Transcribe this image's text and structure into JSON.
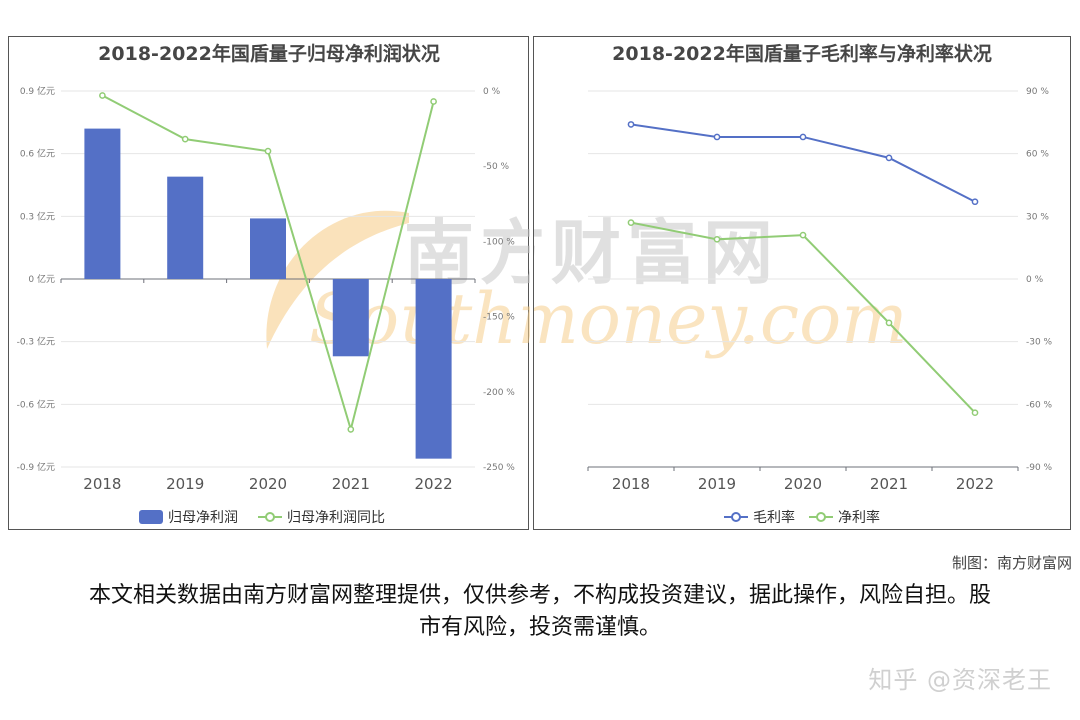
{
  "colors": {
    "bar": "#5470c6",
    "line_green": "#91cc75",
    "line_blue": "#5470c6",
    "grid": "#e6e6e6",
    "axis": "#6e7079"
  },
  "chart_data": [
    {
      "type": "bar",
      "title": "2018-2022年国盾量子归母净利润状况",
      "categories": [
        "2018",
        "2019",
        "2020",
        "2021",
        "2022"
      ],
      "y_left": {
        "ticks": [
          "0.9 亿元",
          "0.6 亿元",
          "0.3 亿元",
          "0 亿元",
          "-0.3 亿元",
          "-0.6 亿元",
          "-0.9 亿元"
        ],
        "ylim": [
          -0.9,
          0.9
        ]
      },
      "y_right": {
        "ticks": [
          "0 %",
          "-50 %",
          "-100 %",
          "-150 %",
          "-200 %",
          "-250 %"
        ],
        "ylim": [
          -250,
          0
        ]
      },
      "series": [
        {
          "name": "归母净利润",
          "type": "bar",
          "axis": "left",
          "values": [
            0.72,
            0.49,
            0.29,
            -0.37,
            -0.86
          ]
        },
        {
          "name": "归母净利润同比",
          "type": "line",
          "axis": "right",
          "values": [
            -3,
            -32,
            -40,
            -225,
            -7
          ]
        }
      ],
      "legend": "bottom",
      "grid": true
    },
    {
      "type": "line",
      "title": "2018-2022年国盾量子毛利率与净利率状况",
      "categories": [
        "2018",
        "2019",
        "2020",
        "2021",
        "2022"
      ],
      "y_right": {
        "ticks": [
          "90 %",
          "60 %",
          "30 %",
          "0 %",
          "-30 %",
          "-60 %",
          "-90 %"
        ],
        "ylim": [
          -90,
          90
        ]
      },
      "series": [
        {
          "name": "毛利率",
          "values": [
            74,
            68,
            68,
            58,
            37
          ]
        },
        {
          "name": "净利率",
          "values": [
            27,
            19,
            21,
            -21,
            -64
          ]
        }
      ],
      "legend": "bottom",
      "grid": true
    }
  ],
  "watermark": {
    "cn": "南方财富网",
    "en": "Southmoney.com"
  },
  "credit": "制图：南方财富网",
  "disclaimer": "本文相关数据由南方财富网整理提供，仅供参考，不构成投资建议，据此操作，风险自担。股市有风险，投资需谨慎。",
  "signature": "知乎 @资深老王"
}
